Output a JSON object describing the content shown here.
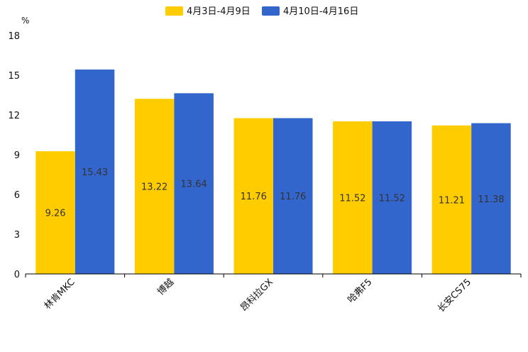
{
  "chart_data": {
    "type": "bar",
    "title": "",
    "ylabel": "%",
    "xlabel": "",
    "ylim": [
      0,
      18
    ],
    "yticks": [
      0,
      3,
      6,
      9,
      12,
      15,
      18
    ],
    "categories": [
      "林肯MKC",
      "博越",
      "昂科拉GX",
      "哈弗F5",
      "长安CS75"
    ],
    "series": [
      {
        "name": "4月3日-4月9日",
        "color": "#FFCC00",
        "values": [
          9.26,
          13.22,
          11.76,
          11.52,
          11.21
        ]
      },
      {
        "name": "4月10日-4月16日",
        "color": "#3366CC",
        "values": [
          15.43,
          13.64,
          11.76,
          11.52,
          11.38
        ]
      }
    ],
    "legend_position": "top-center",
    "grid": false
  }
}
